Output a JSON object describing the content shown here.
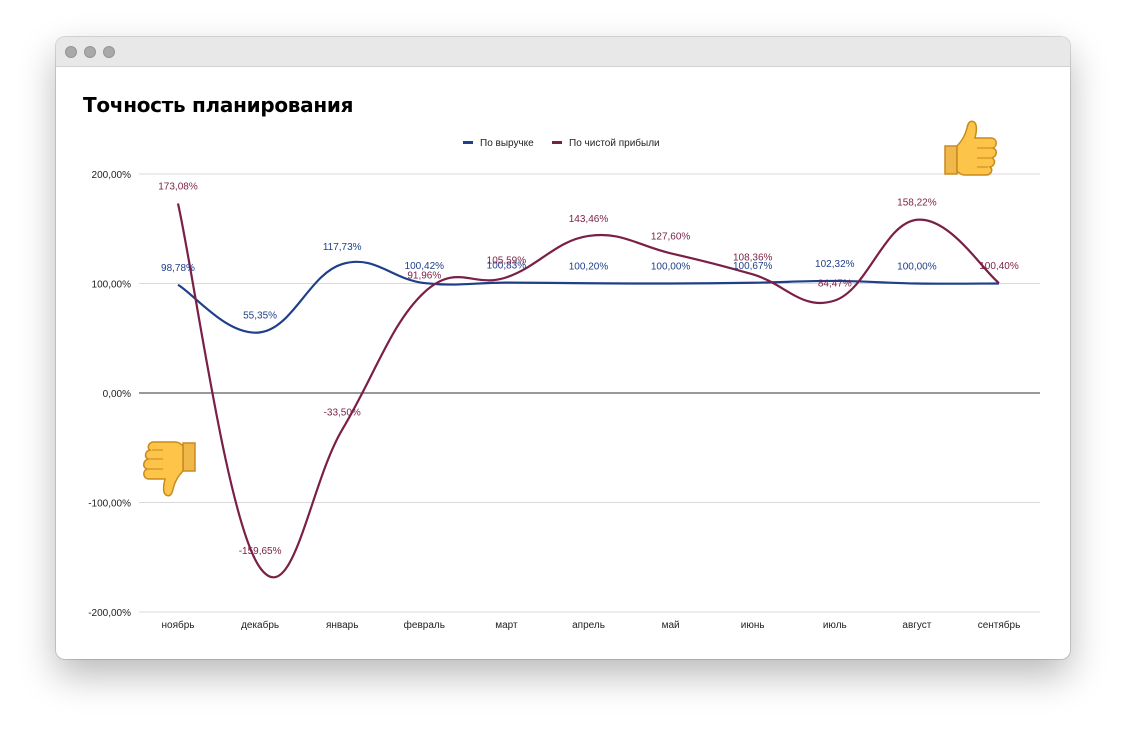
{
  "window": {
    "controls": [
      "close",
      "minimize",
      "zoom"
    ]
  },
  "decorations": [
    {
      "name": "thumbs-up-icon",
      "meaning": "good"
    },
    {
      "name": "thumbs-down-icon",
      "meaning": "bad"
    }
  ],
  "chart_data": {
    "type": "line",
    "title": "Точность планирования",
    "categories": [
      "ноябрь",
      "декабрь",
      "январь",
      "февраль",
      "март",
      "апрель",
      "май",
      "июнь",
      "июль",
      "август",
      "сентябрь"
    ],
    "series": [
      {
        "name": "По выручке",
        "color": "#1f3f8a",
        "values": [
          98.78,
          55.35,
          117.73,
          100.42,
          100.83,
          100.2,
          100.0,
          100.67,
          102.32,
          100.0,
          100.0
        ],
        "labels": [
          "98,78%",
          "55,35%",
          "117,73%",
          "100,42%",
          "100,83%",
          "100,20%",
          "100,00%",
          "100,67%",
          "102,32%",
          "100,00%",
          ""
        ]
      },
      {
        "name": "По чистой прибыли",
        "color": "#7a1f45",
        "values": [
          173.08,
          -159.65,
          -33.5,
          91.96,
          105.59,
          143.46,
          127.6,
          108.36,
          84.47,
          158.22,
          100.4
        ],
        "labels": [
          "173,08%",
          "-159,65%",
          "-33,50%",
          "91,96%",
          "105,59%",
          "143,46%",
          "127,60%",
          "108,36%",
          "84,47%",
          "158,22%",
          "100,40%"
        ]
      }
    ],
    "yticks": [
      {
        "value": 200,
        "label": "200,00%"
      },
      {
        "value": 100,
        "label": "100,00%"
      },
      {
        "value": 0,
        "label": "0,00%"
      },
      {
        "value": -100,
        "label": "-100,00%"
      },
      {
        "value": -200,
        "label": "-200,00%"
      }
    ],
    "ylim": [
      -200,
      200
    ],
    "grid": true,
    "legend_position": "top-center",
    "smooth": true
  }
}
